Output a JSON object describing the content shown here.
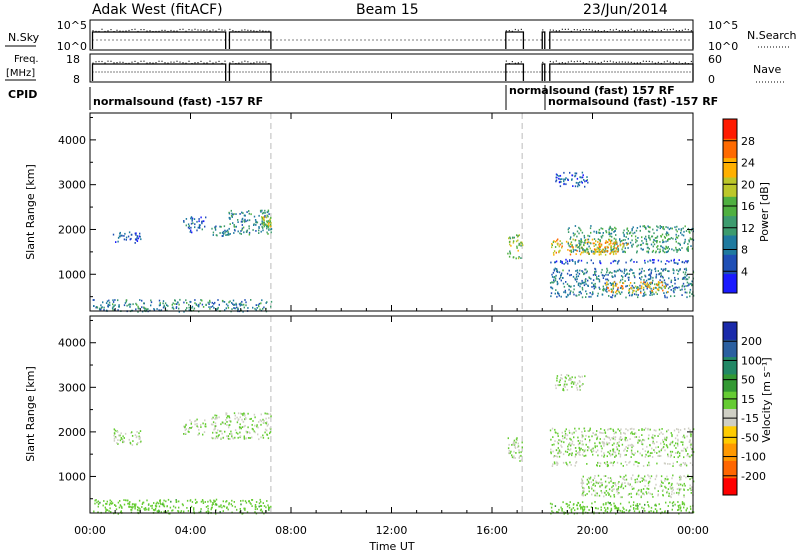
{
  "header": {
    "radar": "Adak West (fitACF)",
    "beam": "Beam 15",
    "date": "23/Jun/2014"
  },
  "top_panels": {
    "nsky": {
      "label": "N.Sky",
      "ticks_left": [
        "10^5",
        "10^0"
      ],
      "right_label": "N.Search",
      "ticks_right": [
        "10^5",
        "10^0"
      ]
    },
    "freq": {
      "label_line1": "Freq.",
      "label_line2": "[MHz]",
      "ticks_left": [
        "18",
        "8"
      ],
      "right_label": "Nave",
      "ticks_right": [
        "60",
        "0"
      ]
    },
    "cpid": {
      "label": "CPID",
      "segments": [
        {
          "text": "normalsound (fast) -157 RF",
          "start_hr": 0.0,
          "row": "lower"
        },
        {
          "text": "normalsound (fast) 157 RF",
          "start_hr": 16.55,
          "row": "upper"
        },
        {
          "text": "normalsound (fast) -157 RF",
          "start_hr": 18.3,
          "row": "lower"
        }
      ]
    }
  },
  "x_axis": {
    "label": "Time UT",
    "ticks": [
      "00:00",
      "04:00",
      "08:00",
      "12:00",
      "16:00",
      "20:00",
      "00:00"
    ],
    "range_hours": [
      0,
      24
    ]
  },
  "power_panel": {
    "ylabel": "Slant Range [km]",
    "colorbar_label": "Power [dB]",
    "colorbar_ticks": [
      "4",
      "8",
      "12",
      "16",
      "20",
      "24",
      "28"
    ]
  },
  "velocity_panel": {
    "ylabel": "Slant Range [km]",
    "colorbar_label": "Velocity [m s⁻¹]",
    "colorbar_ticks": [
      "200",
      "100",
      "50",
      "15",
      "-15",
      "-50",
      "-100",
      "-200"
    ]
  },
  "chart_data": [
    {
      "type": "heatmap",
      "name": "power",
      "x_range_hours": [
        0,
        24
      ],
      "y_range_km": [
        180,
        4600
      ],
      "yticks_km": [
        1000,
        2000,
        3000,
        4000
      ],
      "colormap": [
        "#1a1aff",
        "#1f4fb5",
        "#1f7a9f",
        "#3c9b6e",
        "#4fb040",
        "#bcc72a",
        "#ffb000",
        "#ff6a00",
        "#ff1a00"
      ],
      "colorbar_range_db": [
        0,
        31
      ],
      "gap_lines_hours": [
        7.2,
        17.2
      ],
      "echo_regions": [
        {
          "t0": 0.9,
          "t1": 2.0,
          "r0": 1720,
          "r1": 1980,
          "power": 6
        },
        {
          "t0": 3.7,
          "t1": 4.6,
          "r0": 1950,
          "r1": 2300,
          "power": 6
        },
        {
          "t0": 4.8,
          "t1": 5.5,
          "r0": 1850,
          "r1": 2100,
          "power": 10
        },
        {
          "t0": 5.5,
          "t1": 7.2,
          "r0": 1900,
          "r1": 2450,
          "power": 10
        },
        {
          "t0": 6.8,
          "t1": 7.2,
          "r0": 2050,
          "r1": 2300,
          "power": 18
        },
        {
          "t0": 0.1,
          "t1": 7.2,
          "r0": 180,
          "r1": 450,
          "power": 10
        },
        {
          "t0": 16.6,
          "t1": 17.2,
          "r0": 1350,
          "r1": 1900,
          "power": 17
        },
        {
          "t0": 18.3,
          "t1": 21.0,
          "r0": 1450,
          "r1": 1800,
          "power": 21
        },
        {
          "t0": 19.0,
          "t1": 24.0,
          "r0": 1500,
          "r1": 2100,
          "power": 12
        },
        {
          "t0": 20.0,
          "t1": 21.5,
          "r0": 1500,
          "r1": 1750,
          "power": 22
        },
        {
          "t0": 18.3,
          "t1": 24.0,
          "r0": 1250,
          "r1": 1350,
          "power": 4
        },
        {
          "t0": 18.3,
          "t1": 24.0,
          "r0": 500,
          "r1": 1150,
          "power": 9
        },
        {
          "t0": 20.5,
          "t1": 23.0,
          "r0": 600,
          "r1": 850,
          "power": 21
        },
        {
          "t0": 18.5,
          "t1": 19.8,
          "r0": 2950,
          "r1": 3300,
          "power": 6
        }
      ]
    },
    {
      "type": "heatmap",
      "name": "velocity",
      "x_range_hours": [
        0,
        24
      ],
      "y_range_km": [
        180,
        4600
      ],
      "yticks_km": [
        1000,
        2000,
        3000,
        4000
      ],
      "colormap": [
        "#ff0000",
        "#ff6600",
        "#ff9900",
        "#ffcc00",
        "#cfcfc4",
        "#66cc33",
        "#339933",
        "#228866",
        "#2a5fa0",
        "#1a2aaa"
      ],
      "colorbar_range_ms": [
        -240,
        240
      ],
      "gap_lines_hours": [
        7.2,
        17.2
      ],
      "echo_regions": [
        {
          "t0": 0.9,
          "t1": 2.0,
          "r0": 1720,
          "r1": 2080,
          "vel": 0
        },
        {
          "t0": 3.7,
          "t1": 4.6,
          "r0": 1950,
          "r1": 2300,
          "vel": 0
        },
        {
          "t0": 4.8,
          "t1": 7.2,
          "r0": 1850,
          "r1": 2450,
          "vel": 0
        },
        {
          "t0": 0.1,
          "t1": 7.2,
          "r0": 180,
          "r1": 500,
          "vel": 30
        },
        {
          "t0": 16.6,
          "t1": 17.2,
          "r0": 1350,
          "r1": 1900,
          "vel": 0
        },
        {
          "t0": 18.3,
          "t1": 24.0,
          "r0": 1450,
          "r1": 2100,
          "vel": 0
        },
        {
          "t0": 18.3,
          "t1": 24.0,
          "r0": 1250,
          "r1": 1350,
          "vel": 0
        },
        {
          "t0": 19.5,
          "t1": 24.0,
          "r0": 550,
          "r1": 1050,
          "vel": 0
        },
        {
          "t0": 18.3,
          "t1": 24.0,
          "r0": 180,
          "r1": 450,
          "vel": 30
        },
        {
          "t0": 18.5,
          "t1": 19.8,
          "r0": 2950,
          "r1": 3300,
          "vel": 0
        }
      ]
    }
  ]
}
